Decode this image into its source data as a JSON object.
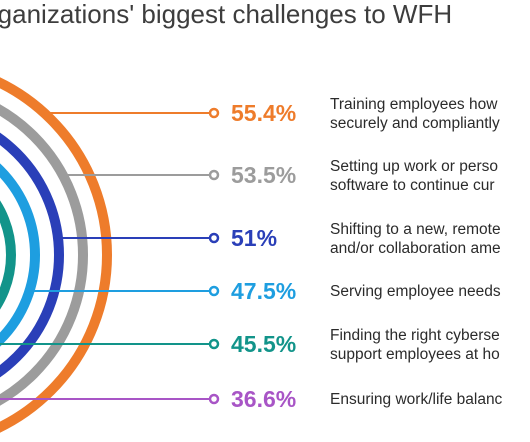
{
  "chart_data": {
    "type": "radial-bar",
    "title": "...ganizations' biggest challenges to WFH",
    "series": [
      {
        "value": 55.4,
        "label": "55.4%",
        "description": [
          "Training employees how",
          "securely and compliantly"
        ],
        "color": "#ee7c2b"
      },
      {
        "value": 53.5,
        "label": "53.5%",
        "description": [
          "Setting up work or perso",
          "software to continue cur"
        ],
        "color": "#9c9c9c"
      },
      {
        "value": 51,
        "label": "51%",
        "description": [
          "Shifting to a new, remote",
          "and/or collaboration ame"
        ],
        "color": "#2a3fb8"
      },
      {
        "value": 47.5,
        "label": "47.5%",
        "description": [
          "Serving employee needs"
        ],
        "color": "#1e9ee0"
      },
      {
        "value": 45.5,
        "label": "45.5%",
        "description": [
          "Finding the right cyberse",
          "support employees at ho"
        ],
        "color": "#12948a"
      },
      {
        "value": 36.6,
        "label": "36.6%",
        "description": [
          "Ensuring work/life balanc"
        ],
        "color": "#a855c6"
      }
    ]
  }
}
